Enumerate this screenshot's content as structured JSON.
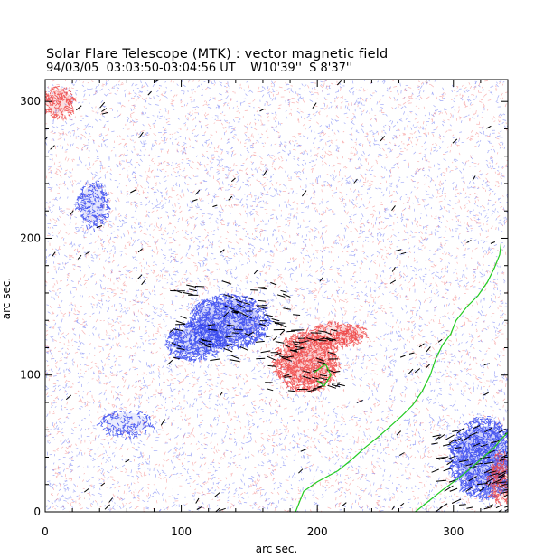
{
  "chart_data": {
    "type": "vector-magnetogram",
    "title": "Solar Flare Telescope (MTK) : vector magnetic field",
    "subtitle": "94/03/05  03:03:50-03:04:56 UT    W10'39''  S 8'37''",
    "xlabel": "arc sec.",
    "ylabel": "arc sec.",
    "xlim": [
      0,
      340
    ],
    "ylim": [
      0,
      316
    ],
    "xticks": [
      0,
      100,
      200,
      300
    ],
    "yticks": [
      0,
      100,
      200,
      300
    ],
    "colors": {
      "positive_polarity": "#ee4444",
      "negative_polarity": "#3344ee",
      "neutral_line": "#22cc22",
      "vectors": "#000000",
      "frame": "#000000"
    },
    "polarity_regions": [
      {
        "polarity": "negative",
        "center": [
          135,
          140
        ],
        "rx": 30,
        "ry": 20,
        "strength": 1.0
      },
      {
        "polarity": "negative",
        "center": [
          110,
          125
        ],
        "rx": 22,
        "ry": 14,
        "strength": 0.8
      },
      {
        "polarity": "negative",
        "center": [
          35,
          225
        ],
        "rx": 12,
        "ry": 18,
        "strength": 0.55
      },
      {
        "polarity": "negative",
        "center": [
          60,
          65
        ],
        "rx": 20,
        "ry": 10,
        "strength": 0.4
      },
      {
        "polarity": "negative",
        "center": [
          322,
          40
        ],
        "rx": 25,
        "ry": 30,
        "strength": 1.0
      },
      {
        "polarity": "positive",
        "center": [
          192,
          110
        ],
        "rx": 24,
        "ry": 22,
        "strength": 1.0
      },
      {
        "polarity": "positive",
        "center": [
          210,
          130
        ],
        "rx": 20,
        "ry": 10,
        "strength": 0.6
      },
      {
        "polarity": "positive",
        "center": [
          10,
          300
        ],
        "rx": 12,
        "ry": 12,
        "strength": 0.7
      },
      {
        "polarity": "positive",
        "center": [
          225,
          130
        ],
        "rx": 12,
        "ry": 8,
        "strength": 0.5
      },
      {
        "polarity": "positive",
        "center": [
          335,
          25
        ],
        "rx": 10,
        "ry": 20,
        "strength": 0.6
      }
    ],
    "neutral_lines": [
      [
        [
          184,
          0
        ],
        [
          190,
          15
        ],
        [
          200,
          22
        ],
        [
          215,
          30
        ],
        [
          225,
          38
        ],
        [
          235,
          47
        ],
        [
          245,
          55
        ],
        [
          253,
          62
        ],
        [
          262,
          70
        ],
        [
          270,
          78
        ],
        [
          277,
          88
        ],
        [
          283,
          100
        ],
        [
          287,
          112
        ],
        [
          292,
          122
        ],
        [
          298,
          130
        ],
        [
          302,
          140
        ],
        [
          310,
          150
        ],
        [
          318,
          158
        ],
        [
          325,
          168
        ],
        [
          330,
          178
        ],
        [
          334,
          188
        ],
        [
          335,
          196
        ]
      ],
      [
        [
          272,
          0
        ],
        [
          282,
          8
        ],
        [
          292,
          16
        ],
        [
          303,
          24
        ],
        [
          313,
          32
        ],
        [
          322,
          40
        ],
        [
          330,
          47
        ],
        [
          335,
          53
        ],
        [
          340,
          58
        ]
      ],
      [
        [
          198,
          102
        ],
        [
          206,
          108
        ],
        [
          210,
          100
        ],
        [
          205,
          92
        ],
        [
          200,
          96
        ]
      ]
    ]
  }
}
